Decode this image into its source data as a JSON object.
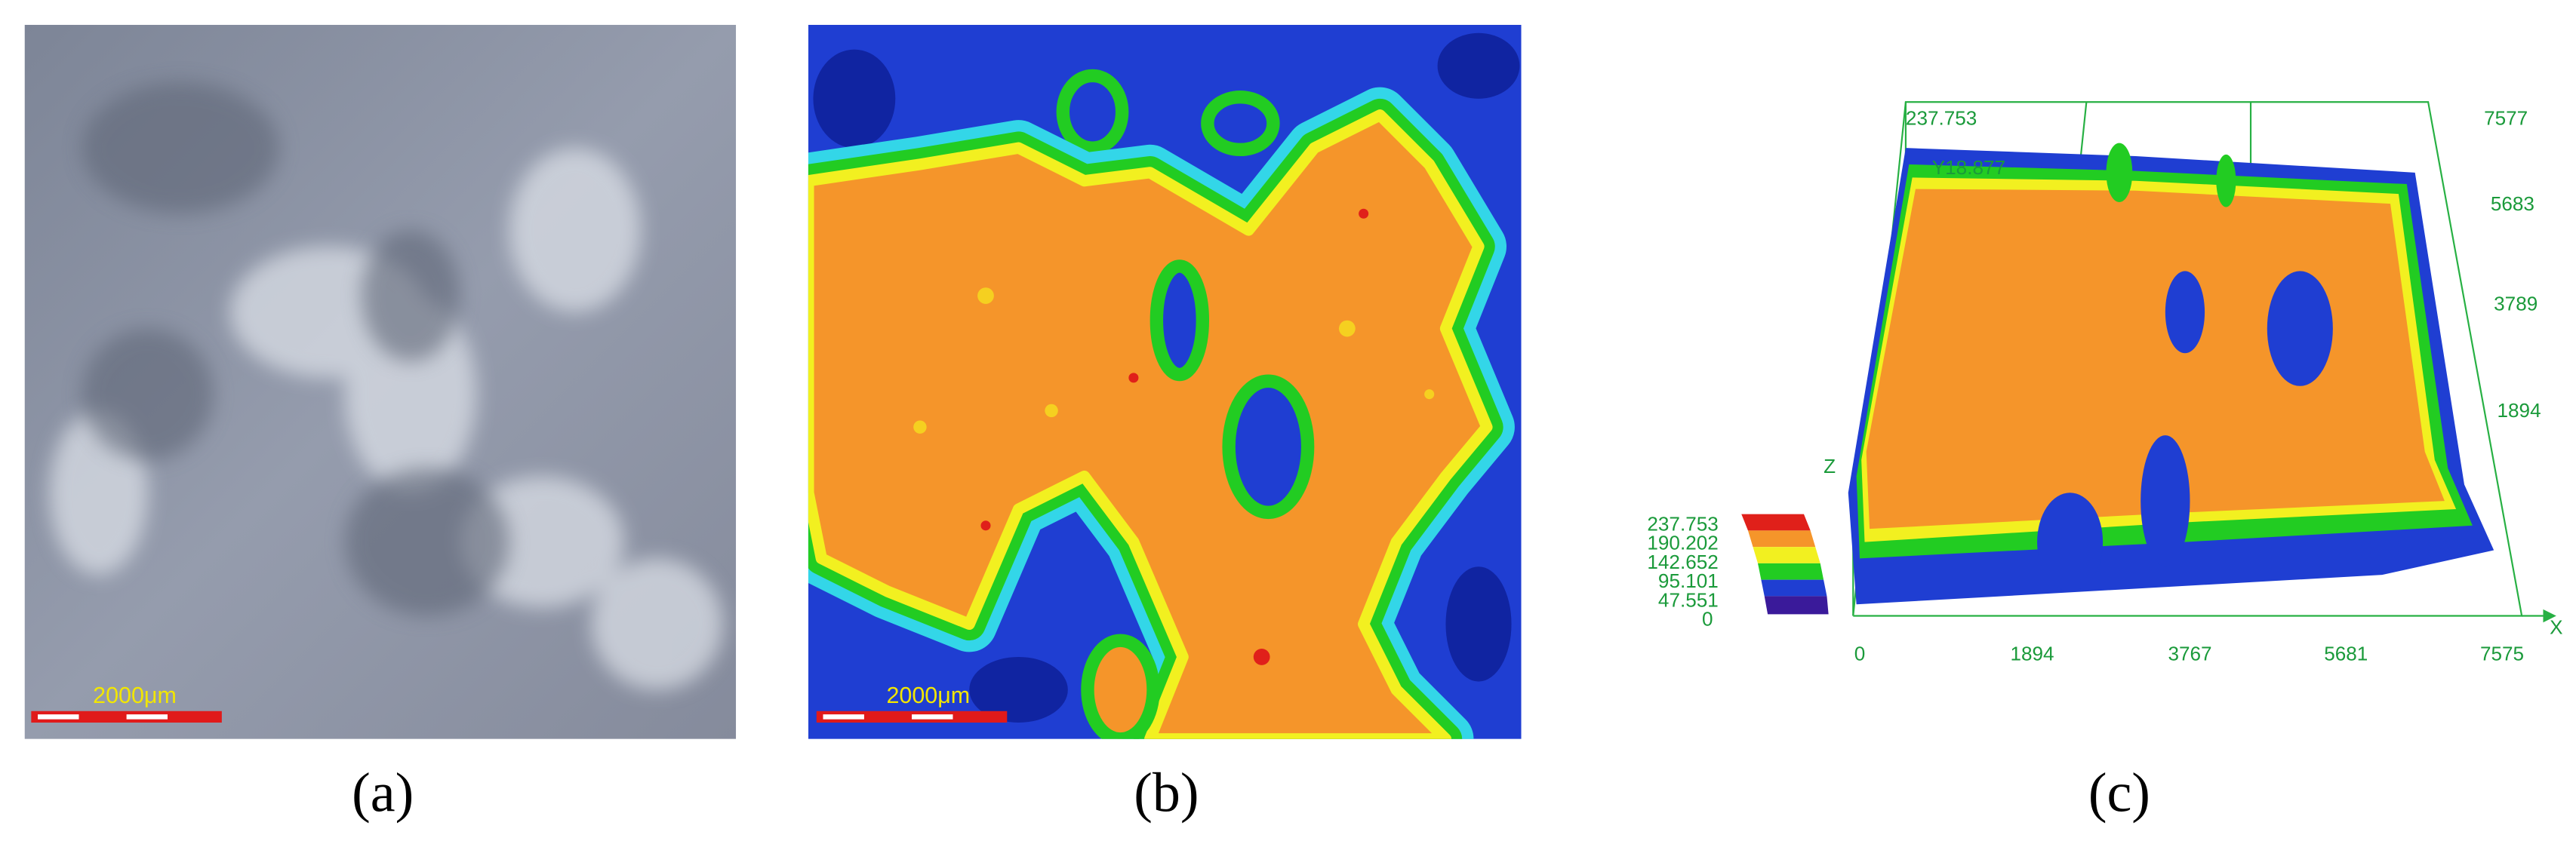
{
  "panels": [
    {
      "label": "(a)",
      "scale_bar": "2000μm"
    },
    {
      "label": "(b)",
      "scale_bar": "2000μm"
    },
    {
      "label": "(c)",
      "z_top": 237.753,
      "y_top": "Y18.877",
      "axis_z": "Z",
      "axis_x": "X",
      "x_ticks": [
        0,
        1894,
        3767,
        5681,
        7575
      ],
      "y_ticks": [
        7577,
        5683,
        3789,
        1894
      ],
      "legend": [
        237.753,
        190.202,
        142.652,
        95.101,
        47.551,
        0
      ]
    }
  ]
}
